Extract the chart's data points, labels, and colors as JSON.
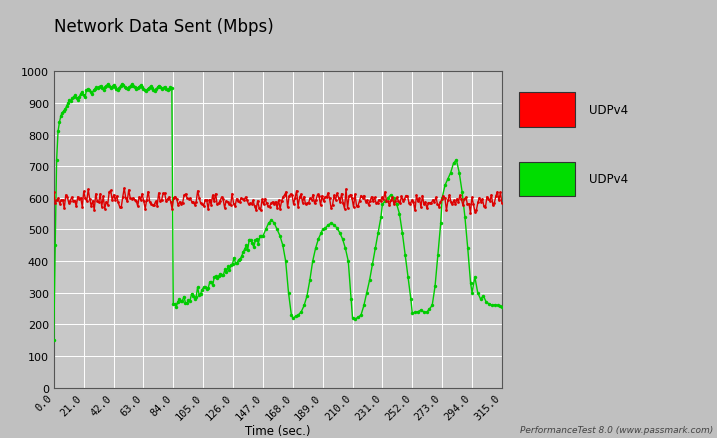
{
  "title": "Network Data Sent (Mbps)",
  "xlabel": "Time (sec.)",
  "xlim": [
    0,
    315
  ],
  "ylim": [
    0,
    1000
  ],
  "xticks": [
    0.0,
    21.0,
    42.0,
    63.0,
    84.0,
    105.0,
    126.0,
    147.0,
    168.0,
    189.0,
    210.0,
    231.0,
    252.0,
    273.0,
    294.0,
    315.0
  ],
  "yticks": [
    0,
    100,
    200,
    300,
    400,
    500,
    600,
    700,
    800,
    900,
    1000
  ],
  "fig_bg": "#c0c0c0",
  "plot_bg": "#c8c8c8",
  "right_bg": "#ffffff",
  "grid_color": "#b0b0b0",
  "legend": [
    {
      "label": "UDPv4",
      "color": "#ff0000"
    },
    {
      "label": "UDPv4",
      "color": "#00dd00"
    }
  ],
  "watermark": "PerformanceTest 8.0 (www.passmark.com)"
}
